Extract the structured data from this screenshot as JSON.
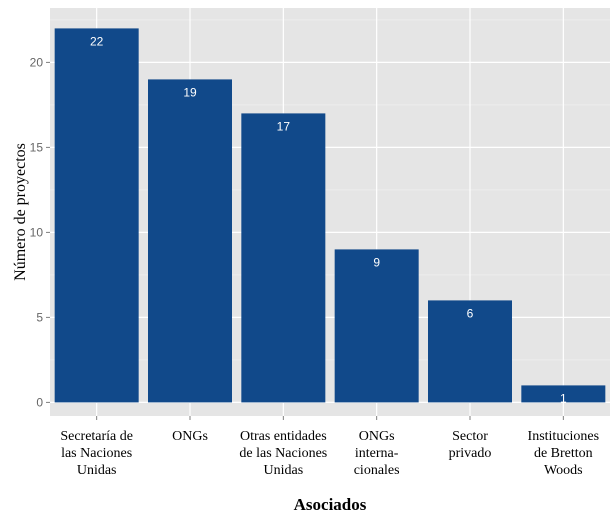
{
  "chart_data": {
    "type": "bar",
    "categories": [
      [
        "Secretaría de",
        "las Naciones",
        "Unidas"
      ],
      [
        "ONGs"
      ],
      [
        "Otras entidades",
        "de las Naciones",
        "Unidas"
      ],
      [
        "ONGs",
        "interna-",
        "cionales"
      ],
      [
        "Sector",
        "privado"
      ],
      [
        "Instituciones",
        "de Bretton",
        "Woods"
      ]
    ],
    "values": [
      22,
      19,
      17,
      9,
      6,
      1
    ],
    "data_labels": [
      "22",
      "19",
      "17",
      "9",
      "6",
      "1"
    ],
    "xlabel": "Asociados",
    "ylabel": "Número de proyectos",
    "ylim": [
      -0.8,
      23.2
    ],
    "yticks": [
      0,
      5,
      10,
      15,
      20
    ],
    "ytick_labels": [
      "0",
      "5",
      "10",
      "15",
      "20"
    ],
    "grid": true,
    "colors": {
      "bar": "#11498a",
      "panel": "#e5e5e5",
      "grid_major": "#ffffff",
      "grid_minor": "#f0f0f0"
    }
  }
}
